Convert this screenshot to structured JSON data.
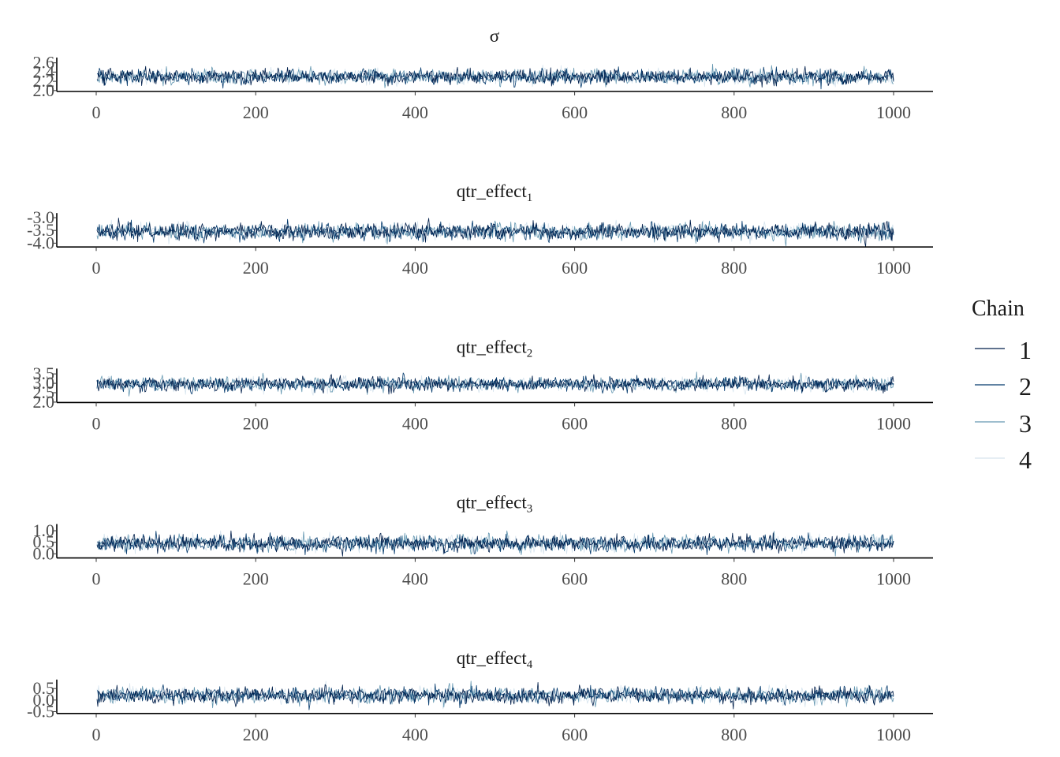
{
  "chart_data": [
    {
      "type": "line",
      "title": "σ",
      "title_sub": "",
      "x_ticks": [
        0,
        200,
        400,
        600,
        800,
        1000
      ],
      "y_ticks": [
        "2.0",
        "2.2",
        "2.4",
        "2.6"
      ],
      "y_tick_values": [
        2.0,
        2.2,
        2.4,
        2.6
      ],
      "xlim": [
        0,
        1000
      ],
      "ylim": [
        1.98,
        2.68
      ],
      "center": 2.3,
      "spread": 0.075,
      "iterations": 1000,
      "series": [
        {
          "name": "1"
        },
        {
          "name": "2"
        },
        {
          "name": "3"
        },
        {
          "name": "4"
        }
      ]
    },
    {
      "type": "line",
      "title": "qtr_effect",
      "title_sub": "1",
      "x_ticks": [
        0,
        200,
        400,
        600,
        800,
        1000
      ],
      "y_ticks": [
        "-4.0",
        "-3.5",
        "-3.0"
      ],
      "y_tick_values": [
        -4.0,
        -3.5,
        -3.0
      ],
      "xlim": [
        0,
        1000
      ],
      "ylim": [
        -4.15,
        -2.88
      ],
      "center": -3.55,
      "spread": 0.15,
      "iterations": 1000,
      "series": [
        {
          "name": "1"
        },
        {
          "name": "2"
        },
        {
          "name": "3"
        },
        {
          "name": "4"
        }
      ]
    },
    {
      "type": "line",
      "title": "qtr_effect",
      "title_sub": "2",
      "x_ticks": [
        0,
        200,
        400,
        600,
        800,
        1000
      ],
      "y_ticks": [
        "2.0",
        "2.5",
        "3.0",
        "3.5"
      ],
      "y_tick_values": [
        2.0,
        2.5,
        3.0,
        3.5
      ],
      "xlim": [
        0,
        1000
      ],
      "ylim": [
        1.98,
        3.7
      ],
      "center": 2.95,
      "spread": 0.17,
      "iterations": 1000,
      "series": [
        {
          "name": "1"
        },
        {
          "name": "2"
        },
        {
          "name": "3"
        },
        {
          "name": "4"
        }
      ]
    },
    {
      "type": "line",
      "title": "qtr_effect",
      "title_sub": "3",
      "x_ticks": [
        0,
        200,
        400,
        600,
        800,
        1000
      ],
      "y_ticks": [
        "0.0",
        "0.5",
        "1.0"
      ],
      "y_tick_values": [
        0.0,
        0.5,
        1.0
      ],
      "xlim": [
        0,
        1000
      ],
      "ylim": [
        -0.18,
        1.22
      ],
      "center": 0.45,
      "spread": 0.16,
      "iterations": 1000,
      "series": [
        {
          "name": "1"
        },
        {
          "name": "2"
        },
        {
          "name": "3"
        },
        {
          "name": "4"
        }
      ]
    },
    {
      "type": "line",
      "title": "qtr_effect",
      "title_sub": "4",
      "x_ticks": [
        0,
        200,
        400,
        600,
        800,
        1000
      ],
      "y_ticks": [
        "-0.5",
        "0.0",
        "0.5"
      ],
      "y_tick_values": [
        -0.5,
        0.0,
        0.5
      ],
      "xlim": [
        0,
        1000
      ],
      "ylim": [
        -0.58,
        0.82
      ],
      "center": 0.2,
      "spread": 0.16,
      "iterations": 1000,
      "series": [
        {
          "name": "1"
        },
        {
          "name": "2"
        },
        {
          "name": "3"
        },
        {
          "name": "4"
        }
      ]
    }
  ],
  "legend": {
    "title": "Chain",
    "placement": "right",
    "items": [
      {
        "label": "1",
        "color": "#011f4b"
      },
      {
        "label": "2",
        "color": "#03396c"
      },
      {
        "label": "3",
        "color": "#6497b1"
      },
      {
        "label": "4",
        "color": "#d6e4ee"
      }
    ]
  },
  "grid": false
}
